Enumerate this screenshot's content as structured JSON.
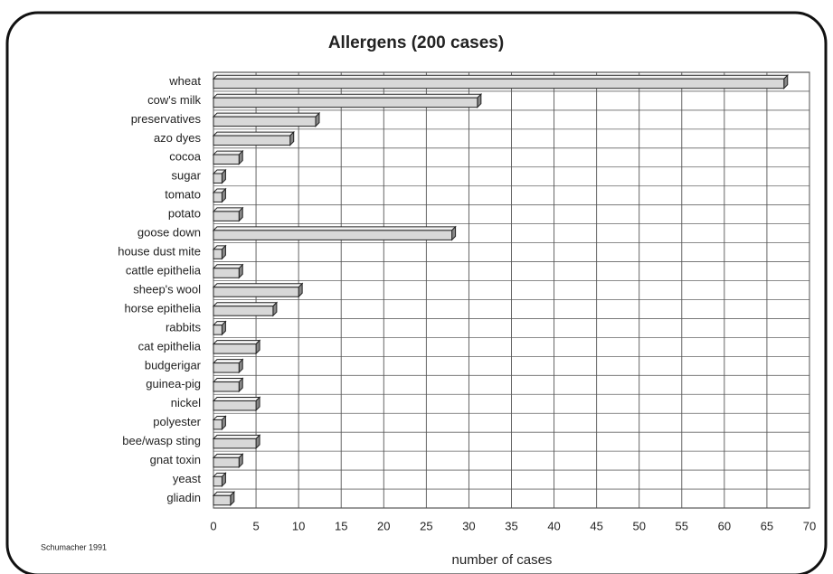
{
  "chart_data": {
    "type": "barh",
    "title": "Allergens (200 cases)",
    "categories": [
      "wheat",
      "cow's milk",
      "preservatives",
      "azo dyes",
      "cocoa",
      "sugar",
      "tomato",
      "potato",
      "goose down",
      "house dust mite",
      "cattle epithelia",
      "sheep's wool",
      "horse epithelia",
      "rabbits",
      "cat epithelia",
      "budgerigar",
      "guinea-pig",
      "nickel",
      "polyester",
      "bee/wasp sting",
      "gnat toxin",
      "yeast",
      "gliadin"
    ],
    "values": [
      67,
      31,
      12,
      9,
      3,
      1,
      1,
      3,
      28,
      1,
      3,
      10,
      7,
      1,
      5,
      3,
      3,
      5,
      1,
      5,
      3,
      1,
      2
    ],
    "color": "#d8d8d8",
    "xlim": [
      0,
      70
    ],
    "xticks": [
      0,
      5,
      10,
      15,
      20,
      25,
      30,
      35,
      40,
      45,
      50,
      55,
      60,
      65,
      70
    ],
    "xlabel": "number of cases",
    "source": "Schumacher 1991",
    "grid": true
  }
}
